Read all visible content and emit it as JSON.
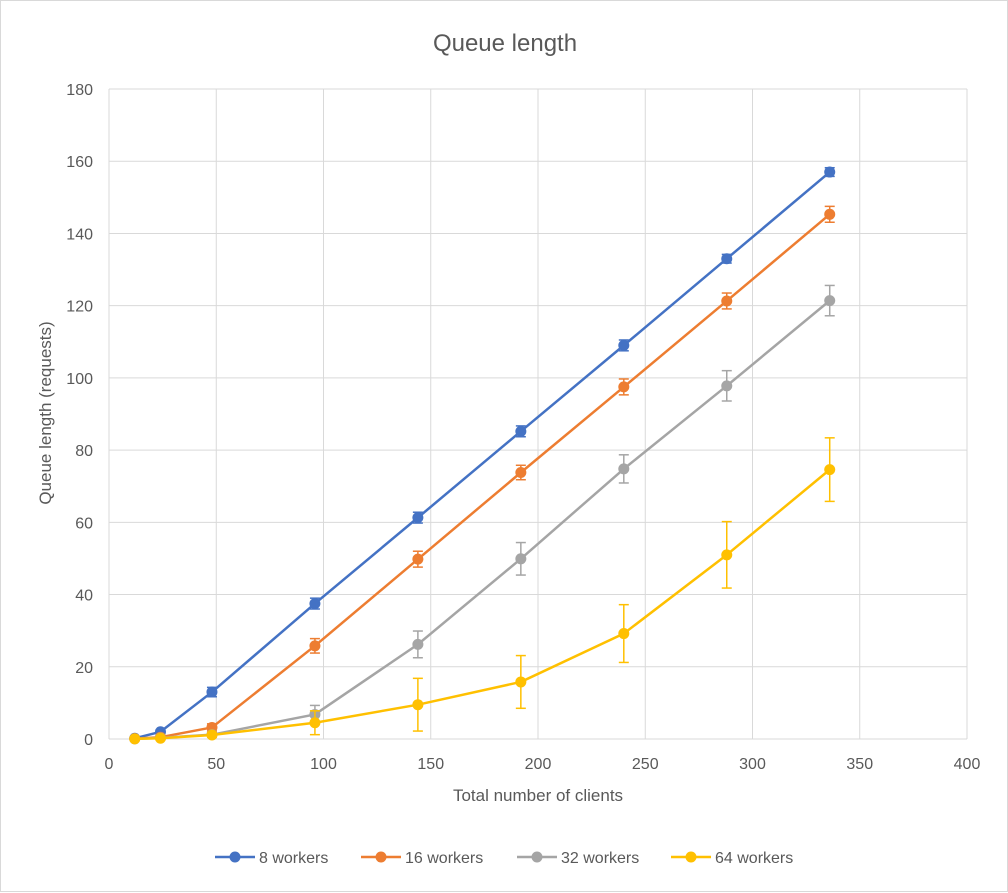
{
  "chart_data": {
    "type": "line",
    "title": "Queue length",
    "xlabel": "Total number of clients",
    "ylabel": "Queue length (requests)",
    "xlim": [
      0,
      400
    ],
    "ylim": [
      0,
      180
    ],
    "x_ticks": [
      "0",
      "50",
      "100",
      "150",
      "200",
      "250",
      "300",
      "350",
      "400"
    ],
    "y_ticks": [
      "0",
      "20",
      "40",
      "60",
      "80",
      "100",
      "120",
      "140",
      "160",
      "180"
    ],
    "grid": true,
    "legend_position": "bottom",
    "x": [
      12,
      24,
      48,
      96,
      144,
      192,
      240,
      288,
      336
    ],
    "series": [
      {
        "name": "8 workers",
        "color": "#4472c4",
        "values": [
          0.2,
          2,
          13,
          37.5,
          61.3,
          85.2,
          109,
          133,
          157
        ],
        "errors": [
          0.3,
          0.5,
          1.3,
          1.5,
          1.5,
          1.5,
          1.5,
          1.2,
          1.2
        ]
      },
      {
        "name": "16 workers",
        "color": "#ed7d31",
        "values": [
          0.1,
          0.5,
          3.2,
          25.8,
          49.8,
          73.8,
          97.5,
          121.3,
          145.3
        ],
        "errors": [
          0.2,
          0.4,
          1.0,
          2.0,
          2.2,
          2.0,
          2.2,
          2.2,
          2.2
        ]
      },
      {
        "name": "32 workers",
        "color": "#a5a5a5",
        "values": [
          0.05,
          0.3,
          1.2,
          6.8,
          26.2,
          49.9,
          74.8,
          97.8,
          121.4
        ],
        "errors": [
          0.1,
          0.3,
          0.5,
          2.5,
          3.7,
          4.5,
          3.9,
          4.2,
          4.2
        ]
      },
      {
        "name": "64 workers",
        "color": "#ffc000",
        "values": [
          0.05,
          0.2,
          1.1,
          4.5,
          9.5,
          15.8,
          29.2,
          51,
          74.6
        ],
        "errors": [
          0.1,
          0.2,
          0.6,
          3.3,
          7.3,
          7.3,
          8.0,
          9.2,
          8.8
        ]
      }
    ]
  }
}
